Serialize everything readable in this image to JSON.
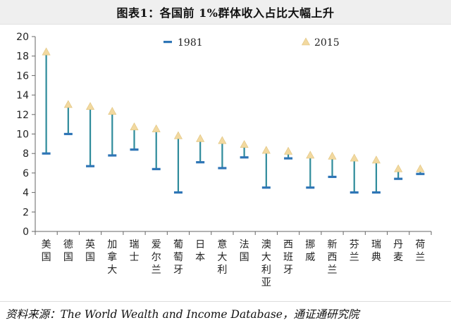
{
  "title": "图表1：各国前 1%群体收入占比大幅上升",
  "source": "资料来源：The World Wealth and Income Database，通证通研究院",
  "chart_data": {
    "type": "range-marker",
    "categories": [
      "美国",
      "德国",
      "英国",
      "加拿大",
      "瑞士",
      "爱尔兰",
      "葡萄牙",
      "日本",
      "意大利",
      "法国",
      "澳大利亚",
      "西班牙",
      "挪威",
      "新西兰",
      "芬兰",
      "瑞典",
      "丹麦",
      "荷兰"
    ],
    "series": [
      {
        "name": "1981",
        "marker": "dash",
        "color": "#2e75b6",
        "values": [
          8.0,
          10.0,
          6.7,
          7.8,
          8.4,
          6.4,
          4.0,
          7.1,
          6.5,
          7.6,
          4.5,
          7.5,
          4.5,
          5.6,
          4.0,
          4.0,
          5.4,
          5.9
        ]
      },
      {
        "name": "2015",
        "marker": "triangle",
        "color": "#f2d9a0",
        "values": [
          18.4,
          13.0,
          12.8,
          12.3,
          10.7,
          10.5,
          9.8,
          9.5,
          9.3,
          8.9,
          8.3,
          8.2,
          7.8,
          7.7,
          7.5,
          7.3,
          6.4,
          6.4
        ]
      }
    ],
    "y_ticks": [
      "0",
      "2",
      "4",
      "6",
      "8",
      "10",
      "12",
      "14",
      "16",
      "18",
      "20"
    ],
    "ylim": [
      0,
      20
    ],
    "legend_position": "top-center",
    "grid": false,
    "stem_color": "#2e8b9b"
  }
}
